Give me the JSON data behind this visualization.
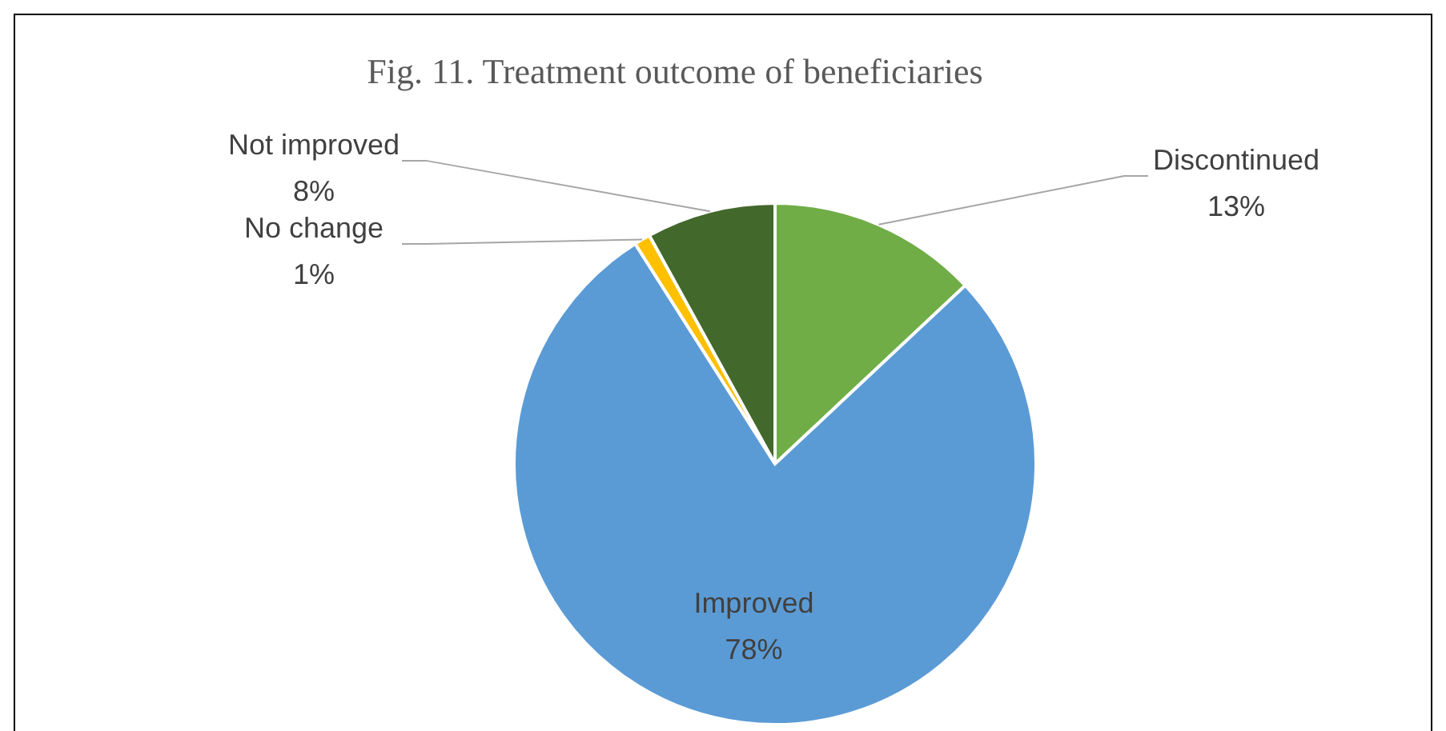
{
  "chart_data": {
    "type": "pie",
    "title": "Fig. 11. Treatment outcome of beneficiaries",
    "categories": [
      "Discontinued",
      "Improved",
      "No change",
      "Not improved"
    ],
    "values": [
      13,
      78,
      1,
      8
    ],
    "colors": [
      "#70ad47",
      "#5b9bd5",
      "#ffc000",
      "#43682b"
    ],
    "value_labels": [
      "13%",
      "78%",
      "1%",
      "8%"
    ]
  }
}
